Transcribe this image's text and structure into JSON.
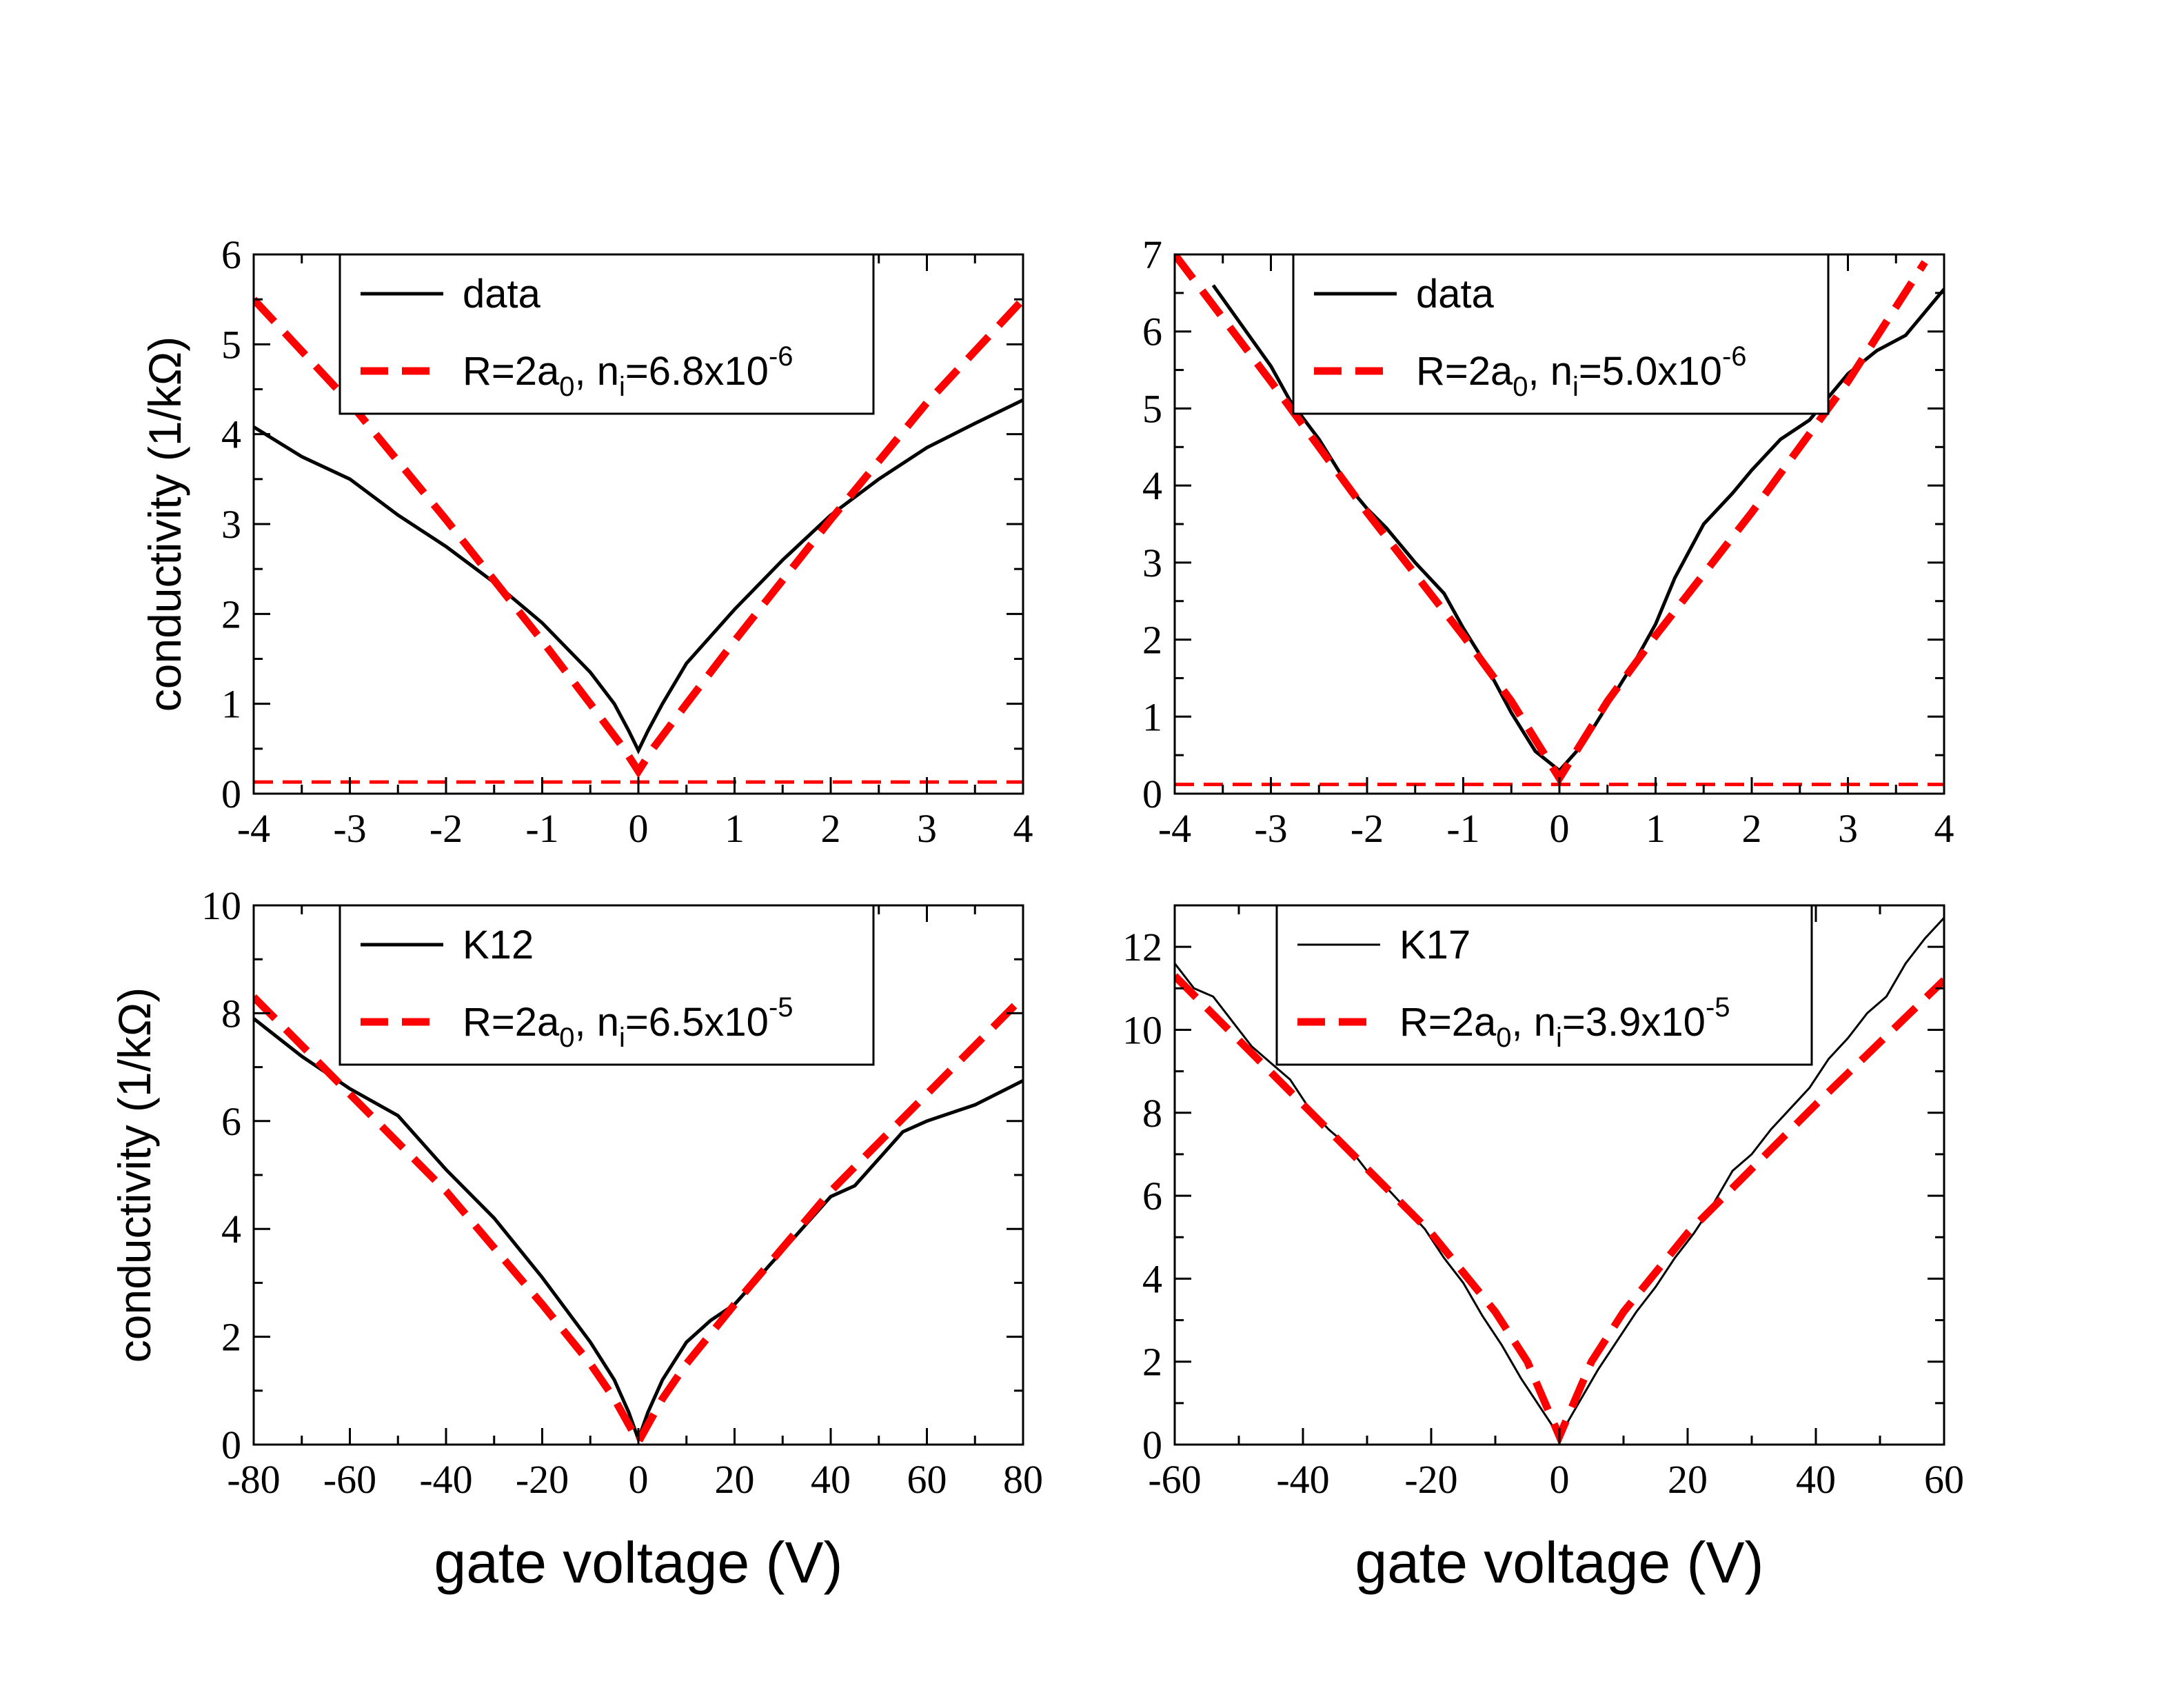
{
  "figure": {
    "background": "#ffffff"
  },
  "colors": {
    "data": "#000000",
    "fit": "#ff0000",
    "frame": "#000000"
  },
  "chart_data": [
    {
      "id": "tl",
      "type": "line",
      "xlim": [
        -4,
        4
      ],
      "ylim": [
        0,
        6
      ],
      "xticks": [
        -4,
        -3,
        -2,
        -1,
        0,
        1,
        2,
        3,
        4
      ],
      "xtick_labels": [
        "-4",
        "-3",
        "-2",
        "-1",
        "0",
        "1",
        "2",
        "3",
        "4"
      ],
      "yticks": [
        0,
        1,
        2,
        3,
        4,
        5,
        6
      ],
      "ytick_labels": [
        "0",
        "1",
        "2",
        "3",
        "4",
        "5",
        "6"
      ],
      "ylabel": "conductivity (1/kΩ)",
      "xlabel": "",
      "legend": {
        "entries": [
          {
            "label": "data",
            "style": "solid",
            "color": "#000000"
          },
          {
            "label_parts": [
              "R=2a",
              "0",
              ", n",
              "i",
              "=6.8x10",
              "-6"
            ],
            "style": "dashed",
            "color": "#ff0000"
          }
        ]
      },
      "series": [
        {
          "name": "data",
          "style": "solid",
          "color": "#000000",
          "x": [
            -4,
            -3.5,
            -3,
            -2.5,
            -2,
            -1.5,
            -1,
            -0.5,
            -0.25,
            -0.1,
            0,
            0.1,
            0.25,
            0.5,
            1,
            1.5,
            2,
            2.5,
            3,
            3.5,
            4
          ],
          "y": [
            4.08,
            3.75,
            3.5,
            3.1,
            2.75,
            2.35,
            1.9,
            1.35,
            1.0,
            0.7,
            0.48,
            0.7,
            1.0,
            1.45,
            2.05,
            2.6,
            3.1,
            3.5,
            3.85,
            4.12,
            4.38
          ]
        },
        {
          "name": "fit R=2a0, ni=6.8x10^-6",
          "style": "dashed",
          "color": "#ff0000",
          "x": [
            -4,
            -3,
            -2,
            -1,
            -0.5,
            -0.15,
            0,
            0.15,
            0.5,
            1,
            2,
            3,
            4
          ],
          "y": [
            5.5,
            4.35,
            3.05,
            1.7,
            1.0,
            0.5,
            0.25,
            0.5,
            1.0,
            1.7,
            3.05,
            4.35,
            5.5
          ]
        },
        {
          "name": "fit floor",
          "style": "dashed-thin",
          "color": "#ff0000",
          "x": [
            -4,
            4
          ],
          "y": [
            0.13,
            0.13
          ]
        }
      ]
    },
    {
      "id": "tr",
      "type": "line",
      "xlim": [
        -4,
        4
      ],
      "ylim": [
        0,
        7
      ],
      "xticks": [
        -4,
        -3,
        -2,
        -1,
        0,
        1,
        2,
        3,
        4
      ],
      "xtick_labels": [
        "-4",
        "-3",
        "-2",
        "-1",
        "0",
        "1",
        "2",
        "3",
        "4"
      ],
      "yticks": [
        0,
        1,
        2,
        3,
        4,
        5,
        6,
        7
      ],
      "ytick_labels": [
        "0",
        "1",
        "2",
        "3",
        "4",
        "5",
        "6",
        "7"
      ],
      "ylabel": "",
      "xlabel": "",
      "legend": {
        "entries": [
          {
            "label": "data",
            "style": "solid",
            "color": "#000000"
          },
          {
            "label_parts": [
              "R=2a",
              "0",
              ", n",
              "i",
              "=5.0x10",
              "-6"
            ],
            "style": "dashed",
            "color": "#ff0000"
          }
        ]
      },
      "series": [
        {
          "name": "data",
          "style": "solid",
          "color": "#000000",
          "x": [
            -3.6,
            -3.2,
            -3,
            -2.8,
            -2.5,
            -2.2,
            -2,
            -1.8,
            -1.5,
            -1.2,
            -1,
            -0.8,
            -0.5,
            -0.25,
            0,
            0.25,
            0.5,
            0.8,
            1,
            1.2,
            1.5,
            1.8,
            2,
            2.3,
            2.6,
            3,
            3.3,
            3.6,
            3.8,
            4
          ],
          "y": [
            6.6,
            5.9,
            5.55,
            5.1,
            4.6,
            4.0,
            3.7,
            3.45,
            3.0,
            2.6,
            2.15,
            1.75,
            1.05,
            0.55,
            0.3,
            0.65,
            1.15,
            1.75,
            2.2,
            2.8,
            3.5,
            3.9,
            4.2,
            4.6,
            4.85,
            5.45,
            5.75,
            5.95,
            6.25,
            6.55
          ]
        },
        {
          "name": "fit R=2a0, ni=5.0x10^-6",
          "style": "dashed",
          "color": "#ff0000",
          "x": [
            -4,
            -3,
            -2,
            -1,
            -0.5,
            -0.15,
            0,
            0.15,
            0.5,
            1,
            2,
            3,
            3.8
          ],
          "y": [
            7.0,
            5.35,
            3.65,
            2.05,
            1.2,
            0.5,
            0.2,
            0.5,
            1.2,
            2.05,
            3.65,
            5.35,
            6.9
          ]
        },
        {
          "name": "fit floor",
          "style": "dashed-thin",
          "color": "#ff0000",
          "x": [
            -4,
            4
          ],
          "y": [
            0.12,
            0.12
          ]
        }
      ]
    },
    {
      "id": "bl",
      "type": "line",
      "xlim": [
        -80,
        80
      ],
      "ylim": [
        0,
        10
      ],
      "xticks": [
        -80,
        -60,
        -40,
        -20,
        0,
        20,
        40,
        60,
        80
      ],
      "xtick_labels": [
        "-80",
        "-60",
        "-40",
        "-20",
        "0",
        "20",
        "40",
        "60",
        "80"
      ],
      "yticks": [
        0,
        2,
        4,
        6,
        8,
        10
      ],
      "ytick_labels": [
        "0",
        "2",
        "4",
        "6",
        "8",
        "10"
      ],
      "ylabel": "conductivity (1/kΩ)",
      "xlabel": "gate voltage (V)",
      "legend": {
        "entries": [
          {
            "label": "K12",
            "style": "solid",
            "color": "#000000"
          },
          {
            "label_parts": [
              "R=2a",
              "0",
              ", n",
              "i",
              "=6.5x10",
              "-5"
            ],
            "style": "dashed",
            "color": "#ff0000"
          }
        ]
      },
      "series": [
        {
          "name": "K12",
          "style": "solid",
          "color": "#000000",
          "x": [
            -80,
            -70,
            -60,
            -50,
            -40,
            -30,
            -20,
            -10,
            -5,
            -2,
            0,
            2,
            5,
            10,
            15,
            20,
            30,
            40,
            45,
            50,
            55,
            60,
            70,
            80
          ],
          "y": [
            7.9,
            7.2,
            6.6,
            6.1,
            5.1,
            4.2,
            3.1,
            1.9,
            1.2,
            0.6,
            0.1,
            0.6,
            1.2,
            1.9,
            2.3,
            2.6,
            3.6,
            4.6,
            4.8,
            5.3,
            5.8,
            6.0,
            6.3,
            6.75
          ]
        },
        {
          "name": "fit R=2a0, ni=6.5x10^-5",
          "style": "dashed",
          "color": "#ff0000",
          "x": [
            -80,
            -60,
            -40,
            -20,
            -10,
            -5,
            0,
            5,
            10,
            20,
            40,
            60,
            80
          ],
          "y": [
            8.3,
            6.5,
            4.7,
            2.6,
            1.5,
            0.85,
            0.05,
            0.85,
            1.5,
            2.6,
            4.7,
            6.5,
            8.3
          ]
        }
      ]
    },
    {
      "id": "br",
      "type": "line",
      "xlim": [
        -60,
        60
      ],
      "ylim": [
        0,
        13
      ],
      "xticks": [
        -60,
        -40,
        -20,
        0,
        20,
        40,
        60
      ],
      "xtick_labels": [
        "-60",
        "-40",
        "-20",
        "0",
        "20",
        "40",
        "60"
      ],
      "yticks": [
        0,
        2,
        4,
        6,
        8,
        10,
        12
      ],
      "ytick_labels": [
        "0",
        "2",
        "4",
        "6",
        "8",
        "10",
        "12"
      ],
      "ylabel": "",
      "xlabel": "gate voltage (V)",
      "legend": {
        "entries": [
          {
            "label": "K17",
            "style": "solid-thin",
            "color": "#000000"
          },
          {
            "label_parts": [
              "R=2a",
              "0",
              ", n",
              "i",
              "=3.9x10",
              "-5"
            ],
            "style": "dashed",
            "color": "#ff0000"
          }
        ]
      },
      "series": [
        {
          "name": "K17",
          "style": "solid-thin",
          "color": "#000000",
          "x": [
            -60,
            -57,
            -54,
            -51,
            -48,
            -45,
            -42,
            -39,
            -36,
            -33,
            -30,
            -27,
            -24,
            -21,
            -18,
            -15,
            -12,
            -9,
            -6,
            -3,
            0,
            3,
            6,
            9,
            12,
            15,
            18,
            21,
            24,
            27,
            30,
            33,
            36,
            39,
            42,
            45,
            48,
            51,
            54,
            57,
            60
          ],
          "y": [
            11.6,
            11.0,
            10.8,
            10.2,
            9.6,
            9.2,
            8.8,
            8.1,
            7.6,
            7.2,
            6.6,
            6.2,
            5.7,
            5.2,
            4.5,
            3.9,
            3.1,
            2.4,
            1.6,
            0.9,
            0.2,
            1.0,
            1.8,
            2.5,
            3.2,
            3.8,
            4.5,
            5.1,
            5.8,
            6.6,
            7.0,
            7.6,
            8.1,
            8.6,
            9.3,
            9.8,
            10.4,
            10.8,
            11.6,
            12.2,
            12.7
          ]
        },
        {
          "name": "fit R=2a0, ni=3.9x10^-5",
          "style": "dashed",
          "color": "#ff0000",
          "x": [
            -60,
            -40,
            -20,
            -10,
            -5,
            0,
            5,
            10,
            20,
            40,
            60
          ],
          "y": [
            11.3,
            8.2,
            5.1,
            3.2,
            2.0,
            0.2,
            2.0,
            3.2,
            5.1,
            8.2,
            11.2
          ]
        }
      ]
    }
  ]
}
